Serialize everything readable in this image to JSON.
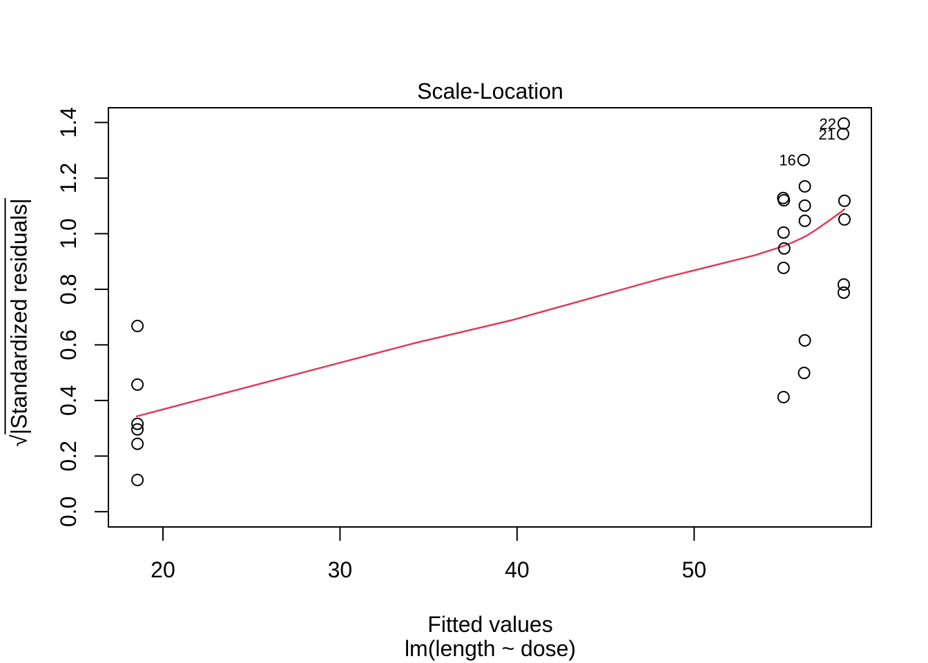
{
  "chart_data": {
    "type": "scatter",
    "title": "Scale-Location",
    "xlabel": "Fitted values",
    "xlabel_sub": "lm(length ~ dose)",
    "ylabel_sqrt": "√",
    "ylabel_rest": "|Standardized residuals|",
    "x_tick_labels": [
      "20",
      "30",
      "40",
      "50"
    ],
    "x_tick_values": [
      20,
      30,
      40,
      50
    ],
    "y_tick_labels": [
      "0.0",
      "0.2",
      "0.4",
      "0.6",
      "0.8",
      "1.0",
      "1.2",
      "1.4"
    ],
    "y_tick_values": [
      0.0,
      0.2,
      0.4,
      0.6,
      0.8,
      1.0,
      1.2,
      1.4
    ],
    "xlim": [
      16.92,
      60.01
    ],
    "ylim": [
      -0.055,
      1.453
    ],
    "grid": false,
    "legend": "none",
    "point_color": "#000000",
    "smooth_color": "#e0395c",
    "points": [
      [
        18.56,
        0.668
      ],
      [
        18.56,
        0.457
      ],
      [
        18.56,
        0.316
      ],
      [
        18.56,
        0.296
      ],
      [
        18.56,
        0.244
      ],
      [
        18.56,
        0.114
      ],
      [
        55.03,
        1.128
      ],
      [
        55.07,
        1.12
      ],
      [
        55.05,
        1.004
      ],
      [
        55.09,
        0.947
      ],
      [
        55.05,
        0.877
      ],
      [
        55.05,
        0.412
      ],
      [
        56.18,
        1.265
      ],
      [
        56.25,
        1.17
      ],
      [
        56.25,
        1.101
      ],
      [
        56.25,
        1.046
      ],
      [
        56.25,
        0.616
      ],
      [
        56.21,
        0.499
      ],
      [
        58.45,
        1.396
      ],
      [
        58.41,
        1.359
      ],
      [
        58.49,
        1.118
      ],
      [
        58.49,
        1.051
      ],
      [
        58.45,
        0.817
      ],
      [
        58.45,
        0.788
      ]
    ],
    "point_labels": [
      {
        "label": "22",
        "x": 58.45,
        "y": 1.396
      },
      {
        "label": "21",
        "x": 58.41,
        "y": 1.359
      },
      {
        "label": "16",
        "x": 56.18,
        "y": 1.265
      }
    ],
    "smooth_line": [
      [
        18.52,
        0.343
      ],
      [
        34.2,
        0.606
      ],
      [
        39.66,
        0.688
      ],
      [
        48.24,
        0.84
      ],
      [
        53.42,
        0.922
      ],
      [
        54.98,
        0.954
      ],
      [
        55.65,
        0.971
      ],
      [
        56.31,
        0.991
      ],
      [
        56.93,
        1.016
      ],
      [
        57.6,
        1.046
      ],
      [
        58.26,
        1.076
      ],
      [
        58.49,
        1.088
      ]
    ]
  }
}
